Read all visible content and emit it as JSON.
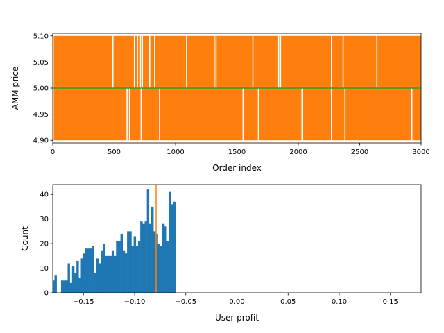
{
  "chart_data": [
    {
      "type": "line",
      "xlabel": "Order index",
      "ylabel": "AMM price",
      "xlim": [
        0,
        3000
      ],
      "ylim": [
        4.895,
        5.105
      ],
      "xticks": [
        0,
        500,
        1000,
        1500,
        2000,
        2500,
        3000
      ],
      "yticks": [
        4.9,
        4.95,
        5.0,
        5.05,
        5.1
      ],
      "xtick_labels": [
        "0",
        "500",
        "1000",
        "1500",
        "2000",
        "2500",
        "3000"
      ],
      "ytick_labels": [
        "4.90",
        "4.95",
        "5.00",
        "5.05",
        "5.10"
      ],
      "series": [
        {
          "color": "#ff7f0e",
          "low": 4.9,
          "high": 5.1,
          "gaps_upper": [
            490,
            665,
            690,
            715,
            730,
            790,
            830,
            1090,
            1315,
            1330,
            1630,
            1840,
            1855,
            2270,
            2365,
            2640
          ],
          "gaps_lower": [
            605,
            625,
            720,
            870,
            1550,
            1675,
            2030,
            2035,
            2270,
            2380,
            2925
          ]
        },
        {
          "color": "#2ca02c",
          "values": [
            5.0,
            5.0
          ]
        }
      ],
      "grid": false
    },
    {
      "type": "bar",
      "subtype": "histogram",
      "xlabel": "User profit",
      "ylabel": "Count",
      "xlim": [
        -0.18,
        0.18
      ],
      "ylim": [
        0,
        44
      ],
      "xticks": [
        -0.15,
        -0.1,
        -0.05,
        0.0,
        0.05,
        0.1,
        0.15
      ],
      "yticks": [
        0,
        10,
        20,
        30,
        40
      ],
      "xtick_labels": [
        "−0.15",
        "−0.10",
        "−0.05",
        "0.00",
        "0.05",
        "0.10",
        "0.15"
      ],
      "ytick_labels": [
        "0",
        "10",
        "20",
        "30",
        "40"
      ],
      "bin_start": -0.1805,
      "bin_width": 0.00215,
      "counts": [
        5,
        7,
        0,
        0,
        5,
        5,
        5,
        12,
        4,
        11,
        8,
        13,
        6,
        14,
        16,
        18,
        18,
        18,
        19,
        8,
        14,
        12,
        17,
        20,
        15,
        15,
        15,
        17,
        15,
        21,
        21,
        24,
        17,
        16,
        25,
        25,
        19,
        23,
        19,
        21,
        29,
        28,
        29,
        42,
        28,
        35,
        25,
        24,
        20,
        19,
        28,
        27,
        21,
        41,
        36,
        37
      ],
      "bar_color": "#1f77b4",
      "vline": {
        "x": -0.079,
        "color": "#ff7f0e"
      },
      "grid": false
    }
  ]
}
